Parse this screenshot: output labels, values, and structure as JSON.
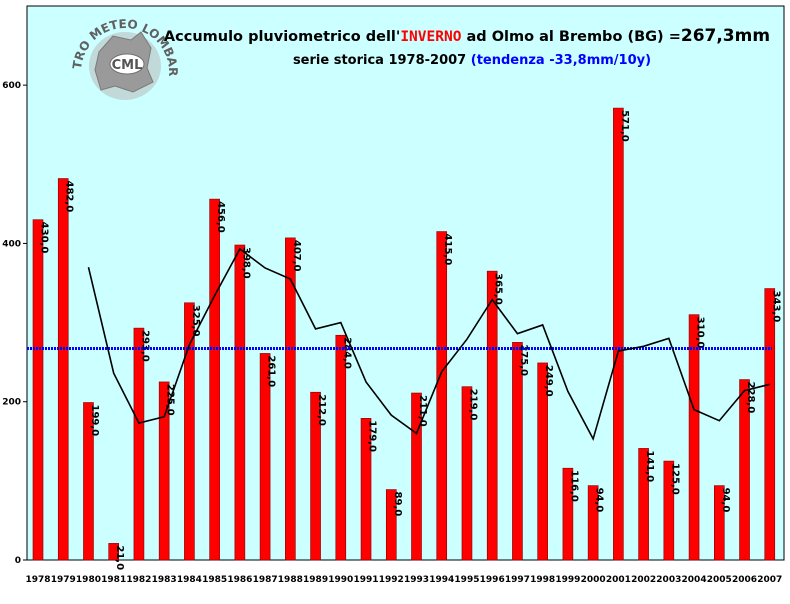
{
  "logo": {
    "arc_text": "CENTRO METEO LOMBARDO",
    "center_text": "CML"
  },
  "title": {
    "part1": "Accumulo pluviometrico dell'",
    "highlight": "INVERNO",
    "part2": " ad Olmo al Brembo (BG) =",
    "value": "267,3mm"
  },
  "subtitle": {
    "text": "serie storica 1978-2007 ",
    "trend": "(tendenza -33,8mm/10y)"
  },
  "colors": {
    "plot_bg": "#ccffff",
    "bar": "#ff0000",
    "bar_edge": "#800000",
    "mean_line": "#0000ff",
    "trend_line": "#000000",
    "title_highlight": "#ff0000",
    "subtitle_trend": "#0000ff"
  },
  "chart_data": {
    "type": "bar",
    "categories": [
      "1978",
      "1979",
      "1980",
      "1981",
      "1982",
      "1983",
      "1984",
      "1985",
      "1986",
      "1987",
      "1988",
      "1989",
      "1990",
      "1991",
      "1992",
      "1993",
      "1994",
      "1995",
      "1996",
      "1997",
      "1998",
      "1999",
      "2000",
      "2001",
      "2002",
      "2003",
      "2004",
      "2005",
      "2006",
      "2007"
    ],
    "values": [
      430.0,
      482.0,
      199.0,
      21.0,
      293.0,
      225.0,
      325.0,
      456.0,
      398.0,
      261.0,
      407.0,
      212.0,
      284.0,
      179.0,
      89.0,
      211.0,
      415.0,
      219.0,
      365.0,
      275.0,
      249.0,
      116.0,
      94.0,
      571.0,
      141.0,
      125.0,
      310.0,
      94.0,
      228.0,
      343.0
    ],
    "value_labels": [
      "430,0",
      "482,0",
      "199,0",
      "21,0",
      "293,0",
      "225,0",
      "325,0",
      "456,0",
      "398,0",
      "261,0",
      "407,0",
      "212,0",
      "284,0",
      "179,0",
      "89,0",
      "211,0",
      "415,0",
      "219,0",
      "365,0",
      "275,0",
      "249,0",
      "116,0",
      "94,0",
      "571,0",
      "141,0",
      "125,0",
      "310,0",
      "94,0",
      "228,0",
      "343,0"
    ],
    "mean": 267.3,
    "moving_average": [
      null,
      null,
      370,
      236,
      173,
      181,
      272,
      334,
      393,
      369,
      355,
      292,
      300,
      225,
      183,
      160,
      238,
      279,
      329,
      286,
      297,
      213,
      153,
      264,
      270,
      280,
      190,
      176,
      214,
      222
    ],
    "ylim": [
      0,
      700
    ],
    "yticks": [
      0,
      200,
      400,
      600
    ],
    "ytick_labels": [
      "0",
      "200",
      "400",
      "600"
    ],
    "grid": false
  }
}
